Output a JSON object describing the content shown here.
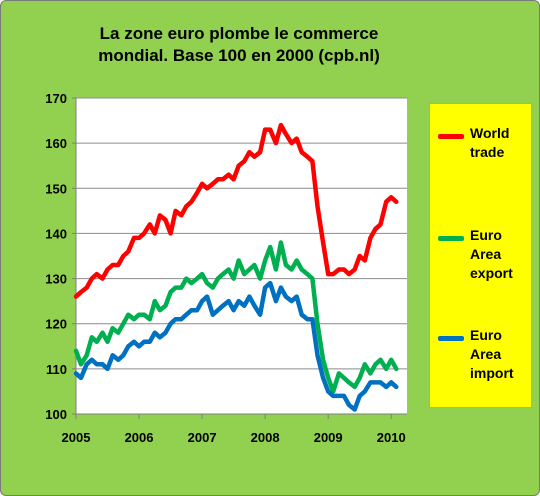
{
  "title_lines": [
    "La zone euro plombe le commerce",
    "mondial. Base 100 en 2000 (cpb.nl)"
  ],
  "colors": {
    "background": "#92d050",
    "plot_area": "#ffffff",
    "legend_bg": "#ffff00",
    "world_trade": "#ff0000",
    "euro_export": "#00b050",
    "euro_import": "#0070c0"
  },
  "chart_data": {
    "type": "line",
    "title": "La zone euro plombe le commerce mondial. Base 100 en 2000 (cpb.nl)",
    "xlim": [
      2005,
      2010.25
    ],
    "ylim": [
      100,
      170
    ],
    "x_ticks": [
      2005,
      2006,
      2007,
      2008,
      2009,
      2010
    ],
    "y_ticks": [
      100,
      110,
      120,
      130,
      140,
      150,
      160,
      170
    ],
    "grid": "horizontal",
    "legend_position": "right",
    "x": [
      2005.0,
      2005.08,
      2005.17,
      2005.25,
      2005.33,
      2005.42,
      2005.5,
      2005.58,
      2005.67,
      2005.75,
      2005.83,
      2005.92,
      2006.0,
      2006.08,
      2006.17,
      2006.25,
      2006.33,
      2006.42,
      2006.5,
      2006.58,
      2006.67,
      2006.75,
      2006.83,
      2006.92,
      2007.0,
      2007.08,
      2007.17,
      2007.25,
      2007.33,
      2007.42,
      2007.5,
      2007.58,
      2007.67,
      2007.75,
      2007.83,
      2007.92,
      2008.0,
      2008.08,
      2008.17,
      2008.25,
      2008.33,
      2008.42,
      2008.5,
      2008.58,
      2008.67,
      2008.75,
      2008.83,
      2008.92,
      2009.0,
      2009.08,
      2009.17,
      2009.25,
      2009.33,
      2009.42,
      2009.5,
      2009.58,
      2009.67,
      2009.75,
      2009.83,
      2009.92,
      2010.0,
      2010.08
    ],
    "series": [
      {
        "name": "World trade",
        "color": "#ff0000",
        "values": [
          126,
          127,
          128,
          130,
          131,
          130,
          132,
          133,
          133,
          135,
          136,
          139,
          139,
          140,
          142,
          140,
          144,
          143,
          140,
          145,
          144,
          146,
          147,
          149,
          151,
          150,
          151,
          152,
          152,
          153,
          152,
          155,
          156,
          158,
          157,
          158,
          163,
          163,
          160,
          164,
          162,
          160,
          161,
          158,
          157,
          156,
          146,
          138,
          131,
          131,
          132,
          132,
          131,
          132,
          135,
          134,
          139,
          141,
          142,
          147,
          148,
          147
        ]
      },
      {
        "name": "Euro Area export",
        "color": "#00b050",
        "values": [
          114,
          111,
          113,
          117,
          116,
          118,
          116,
          119,
          118,
          120,
          122,
          121,
          122,
          122,
          121,
          125,
          123,
          124,
          127,
          128,
          128,
          130,
          129,
          130,
          131,
          129,
          128,
          130,
          131,
          132,
          130,
          134,
          131,
          132,
          133,
          130,
          134,
          137,
          132,
          138,
          133,
          132,
          134,
          132,
          131,
          130,
          120,
          112,
          108,
          105,
          109,
          108,
          107,
          106,
          108,
          111,
          109,
          111,
          112,
          110,
          112,
          110
        ]
      },
      {
        "name": "Euro Area import",
        "color": "#0070c0",
        "values": [
          109,
          108,
          111,
          112,
          111,
          111,
          110,
          113,
          112,
          113,
          115,
          116,
          115,
          116,
          116,
          118,
          117,
          118,
          120,
          121,
          121,
          122,
          123,
          123,
          125,
          126,
          122,
          123,
          124,
          125,
          123,
          125,
          124,
          126,
          124,
          122,
          128,
          129,
          125,
          128,
          126,
          125,
          126,
          122,
          121,
          121,
          113,
          108,
          105,
          104,
          104,
          104,
          102,
          101,
          104,
          105,
          107,
          107,
          107,
          106,
          107,
          106
        ]
      }
    ]
  },
  "legend": [
    {
      "label": "World\ntrade",
      "color": "#ff0000"
    },
    {
      "label": "Euro\nArea\nexport",
      "color": "#00b050"
    },
    {
      "label": "Euro\nArea\nimport",
      "color": "#0070c0"
    }
  ]
}
